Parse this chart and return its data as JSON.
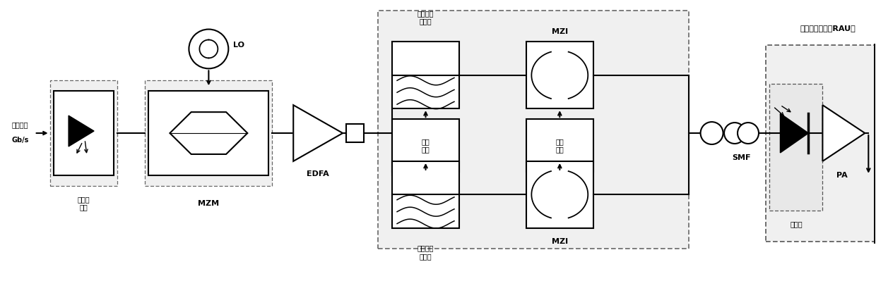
{
  "figsize": [
    12.4,
    3.99
  ],
  "dpi": 100,
  "bg_color": "#ffffff",
  "line_color": "#000000",
  "y_main": 21,
  "xlim": [
    0,
    124
  ],
  "ylim": [
    0,
    39.9
  ],
  "labels": {
    "jidai_1": "基带数据",
    "jidai_2": "Gb/s",
    "zhitiao": "直调激\n光器",
    "mzm": "MZM",
    "edfa": "EDFA",
    "lo": "LO",
    "qudong": "驱动\n电压",
    "ketiao": "可调谐光\n滤波器",
    "mzi": "MZI",
    "kongzhi": "控制\n序列",
    "smf": "SMF",
    "tance": "探测器",
    "pa": "PA",
    "rau": "远端天线单元（RAU）"
  },
  "font_size_label": 7,
  "font_size_block": 7,
  "font_size_bold": 8
}
